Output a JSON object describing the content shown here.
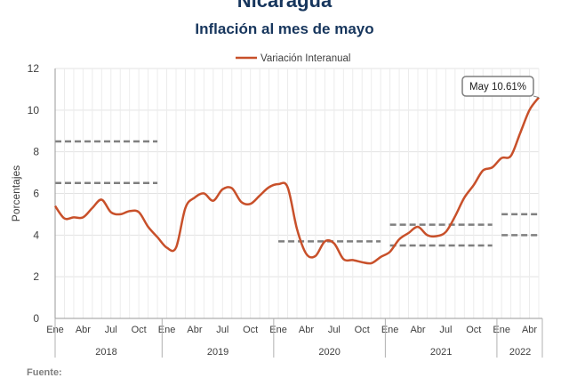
{
  "header": {
    "title": "Nicaragua",
    "subtitle": "Inflación al mes de mayo"
  },
  "footer": {
    "source_label": "Fuente:"
  },
  "chart_data": {
    "type": "line",
    "ylabel": "Porcentajes",
    "ylim": [
      0,
      12
    ],
    "yticks": [
      0,
      2,
      4,
      6,
      8,
      10,
      12
    ],
    "month_tick_labels": [
      "Ene",
      "Abr",
      "Jul",
      "Oct"
    ],
    "last_year_month_tick_labels": [
      "Ene",
      "Abr"
    ],
    "years": [
      "2018",
      "2019",
      "2020",
      "2021",
      "2022"
    ],
    "series": [
      {
        "name": "Variación Interanual",
        "color": "#c8502a",
        "x": [
          "2018-01",
          "2018-02",
          "2018-03",
          "2018-04",
          "2018-05",
          "2018-06",
          "2018-07",
          "2018-08",
          "2018-09",
          "2018-10",
          "2018-11",
          "2018-12",
          "2019-01",
          "2019-02",
          "2019-03",
          "2019-04",
          "2019-05",
          "2019-06",
          "2019-07",
          "2019-08",
          "2019-09",
          "2019-10",
          "2019-11",
          "2019-12",
          "2020-01",
          "2020-02",
          "2020-03",
          "2020-04",
          "2020-05",
          "2020-06",
          "2020-07",
          "2020-08",
          "2020-09",
          "2020-10",
          "2020-11",
          "2020-12",
          "2021-01",
          "2021-02",
          "2021-03",
          "2021-04",
          "2021-05",
          "2021-06",
          "2021-07",
          "2021-08",
          "2021-09",
          "2021-10",
          "2021-11",
          "2021-12",
          "2022-01",
          "2022-02",
          "2022-03",
          "2022-04",
          "2022-05"
        ],
        "values": [
          5.4,
          4.8,
          4.85,
          4.85,
          5.3,
          5.7,
          5.1,
          5.0,
          5.15,
          5.1,
          4.4,
          3.9,
          3.4,
          3.4,
          5.3,
          5.8,
          6.0,
          5.65,
          6.2,
          6.25,
          5.6,
          5.5,
          5.9,
          6.3,
          6.45,
          6.3,
          4.3,
          3.1,
          3.0,
          3.7,
          3.6,
          2.85,
          2.8,
          2.7,
          2.65,
          2.95,
          3.2,
          3.8,
          4.1,
          4.4,
          4.0,
          3.95,
          4.15,
          4.9,
          5.8,
          6.4,
          7.1,
          7.25,
          7.7,
          7.8,
          8.9,
          10.0,
          10.61
        ]
      }
    ],
    "range_bands": [
      {
        "year": "2018",
        "values": [
          8.5,
          6.5
        ]
      },
      {
        "year": "2020",
        "values": [
          3.7
        ]
      },
      {
        "year": "2021",
        "values": [
          4.5,
          3.5
        ]
      },
      {
        "year": "2022",
        "values": [
          5.0,
          4.0
        ]
      }
    ],
    "annotation": {
      "text": "May 10.61%",
      "x": "2022-05",
      "value": 10.61
    },
    "legend_position": "top-center",
    "grid": true
  }
}
